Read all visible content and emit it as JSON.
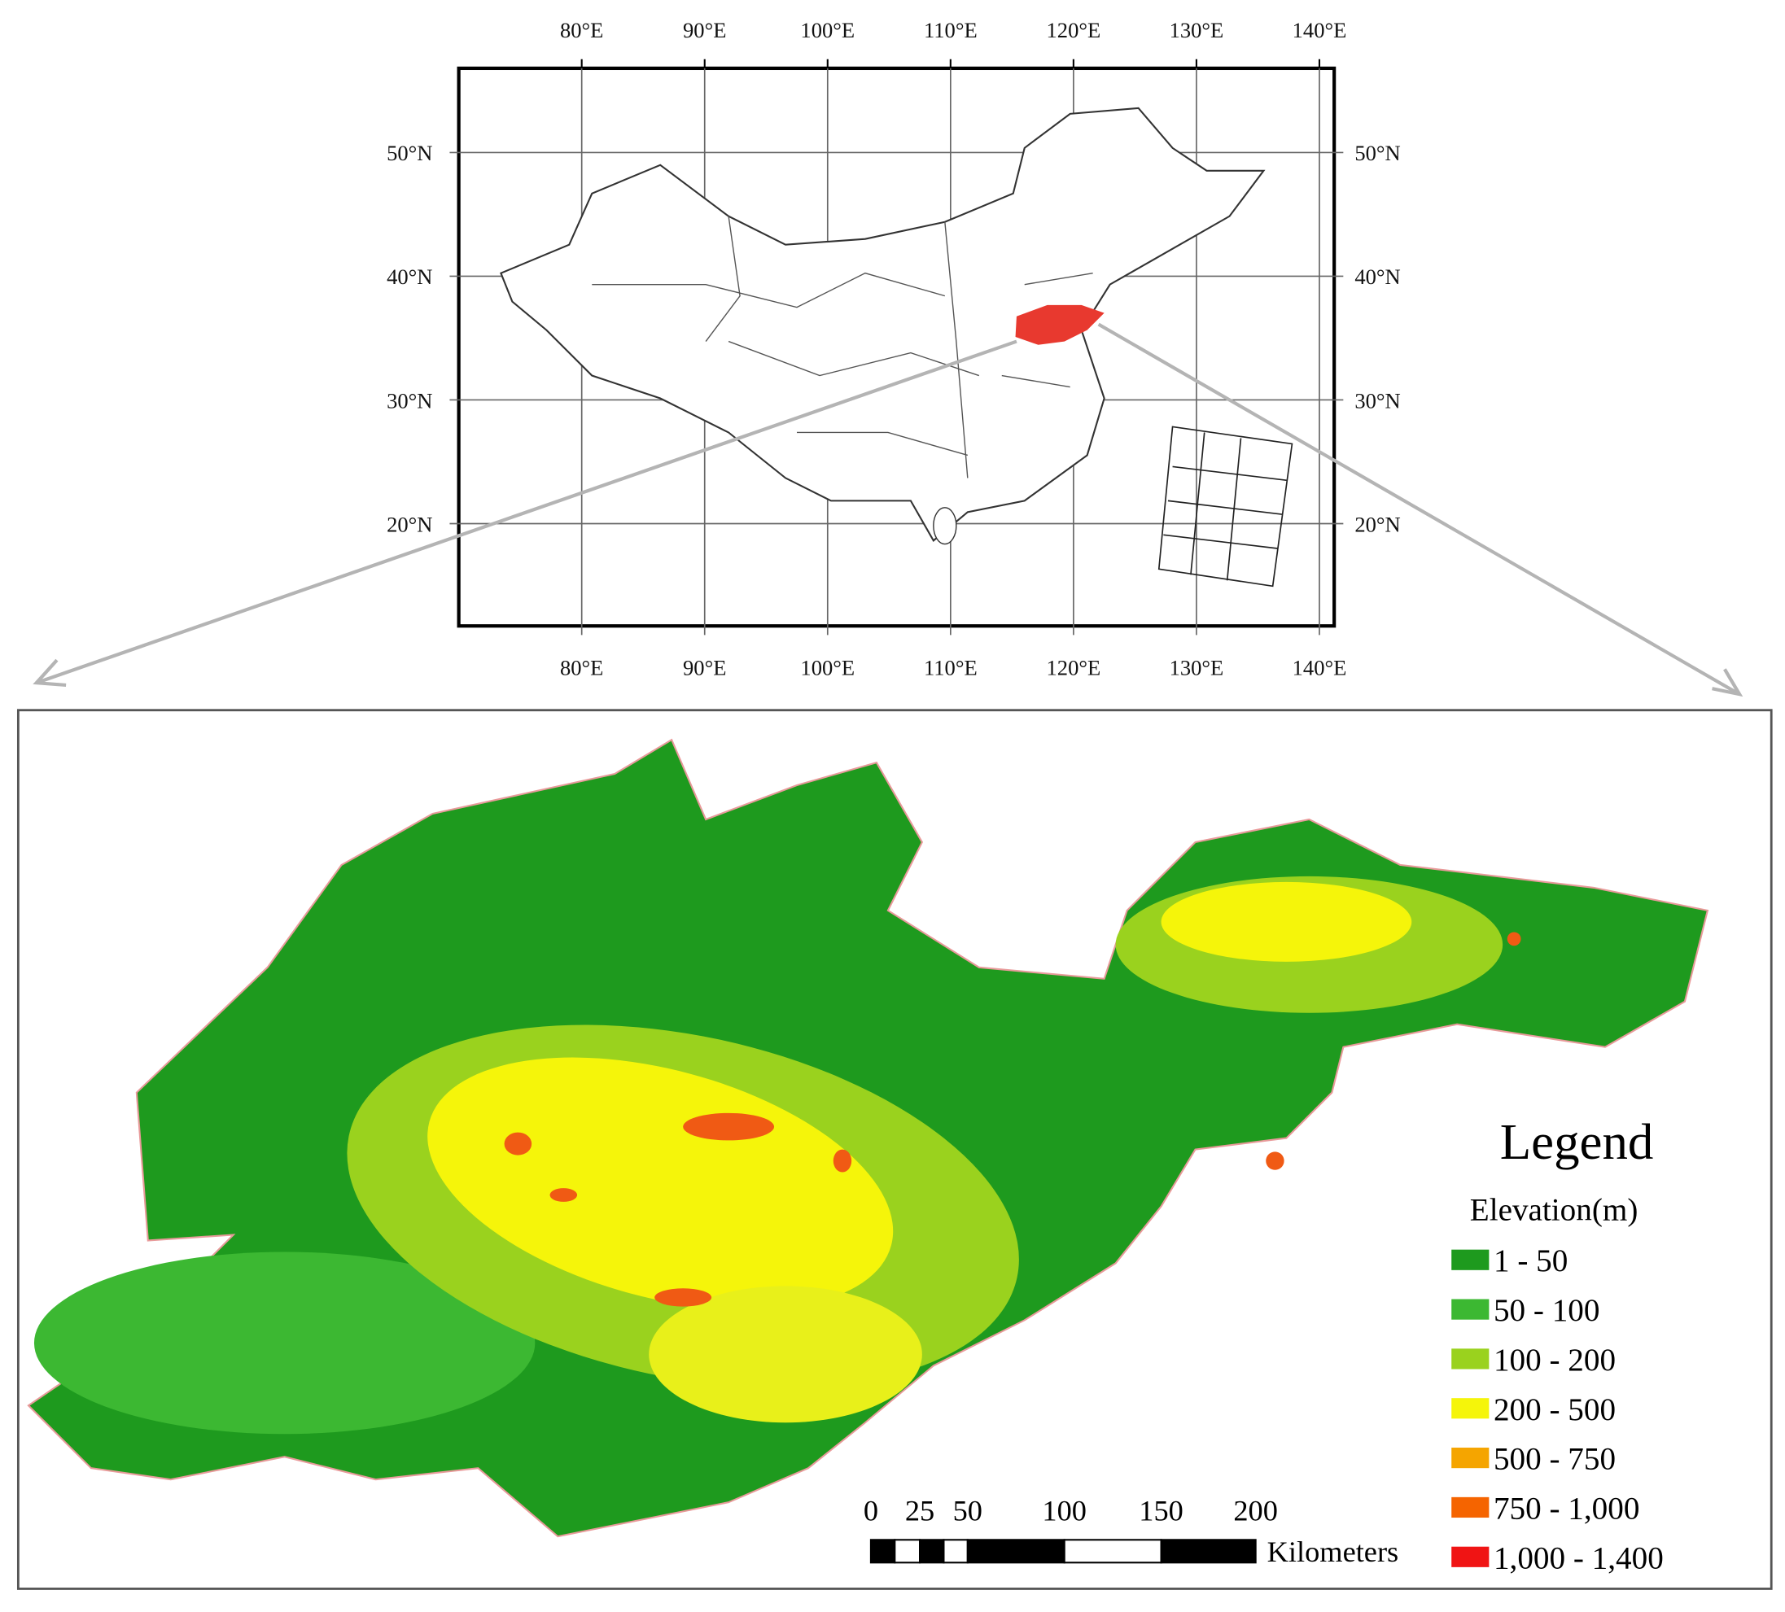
{
  "map": {
    "lon_labels": [
      "80°E",
      "90°E",
      "100°E",
      "110°E",
      "120°E",
      "130°E",
      "140°E"
    ],
    "lat_labels": [
      "50°N",
      "40°N",
      "30°N",
      "20°N"
    ]
  },
  "legend": {
    "title": "Legend",
    "subtitle": "Elevation(m)",
    "items": [
      {
        "label": "1 - 50",
        "color": "#1e9a1e"
      },
      {
        "label": "50 - 100",
        "color": "#3cb832"
      },
      {
        "label": "100 - 200",
        "color": "#9ad21e"
      },
      {
        "label": "200 - 500",
        "color": "#f5f50a"
      },
      {
        "label": "500 - 750",
        "color": "#f5a500"
      },
      {
        "label": "750 - 1,000",
        "color": "#f56400"
      },
      {
        "label": "1,000 - 1,400",
        "color": "#f01414"
      }
    ]
  },
  "scale": {
    "labels": [
      "0",
      "25",
      "50",
      "100",
      "150",
      "200"
    ],
    "unit": "Kilometers"
  }
}
